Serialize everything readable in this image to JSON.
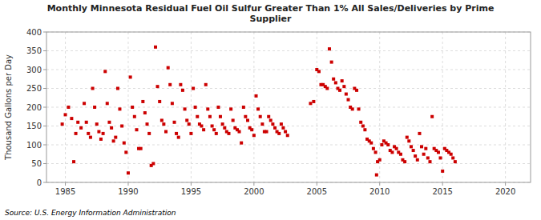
{
  "chart_data": {
    "type": "scatter",
    "title": "Monthly Minnesota Residual Fuel Oil Sulfur Greater Than 1% All Sales/Deliveries by Prime\nSupplier",
    "ylabel": "Thousand Gallons per Day",
    "source": "Source: U.S. Energy Information Administration",
    "color": "#cc0000",
    "marker": "square",
    "grid": true,
    "xlim": [
      1983.5,
      2022
    ],
    "ylim": [
      0,
      400
    ],
    "xticks": [
      1985,
      1990,
      1995,
      2000,
      2005,
      2010,
      2015,
      2020
    ],
    "yticks": [
      0,
      50,
      100,
      150,
      200,
      250,
      300,
      350,
      400
    ],
    "x": [
      1984.75,
      1985.0,
      1985.25,
      1985.5,
      1985.67,
      1985.83,
      1986.0,
      1986.25,
      1986.5,
      1986.67,
      1986.83,
      1987.0,
      1987.17,
      1987.33,
      1987.5,
      1987.67,
      1987.83,
      1988.0,
      1988.17,
      1988.33,
      1988.5,
      1988.67,
      1988.83,
      1989.0,
      1989.17,
      1989.33,
      1989.5,
      1989.67,
      1989.83,
      1990.0,
      1990.17,
      1990.33,
      1990.5,
      1990.67,
      1990.83,
      1991.0,
      1991.17,
      1991.33,
      1991.5,
      1991.67,
      1991.83,
      1992.0,
      1992.17,
      1992.33,
      1992.5,
      1992.67,
      1992.83,
      1993.0,
      1993.17,
      1993.33,
      1993.5,
      1993.67,
      1993.83,
      1994.0,
      1994.17,
      1994.33,
      1994.5,
      1994.67,
      1994.83,
      1995.0,
      1995.17,
      1995.33,
      1995.5,
      1995.67,
      1995.83,
      1996.0,
      1996.17,
      1996.33,
      1996.5,
      1996.67,
      1996.83,
      1997.0,
      1997.17,
      1997.33,
      1997.5,
      1997.67,
      1997.83,
      1998.0,
      1998.17,
      1998.33,
      1998.5,
      1998.67,
      1998.83,
      1999.0,
      1999.17,
      1999.33,
      1999.5,
      1999.67,
      1999.83,
      2000.0,
      2000.17,
      2000.33,
      2000.5,
      2000.67,
      2000.83,
      2001.0,
      2001.17,
      2001.33,
      2001.5,
      2001.67,
      2001.83,
      2002.0,
      2002.17,
      2002.33,
      2002.5,
      2002.67,
      2004.5,
      2004.75,
      2005.0,
      2005.17,
      2005.33,
      2005.5,
      2005.67,
      2005.83,
      2006.0,
      2006.17,
      2006.33,
      2006.5,
      2006.67,
      2006.83,
      2007.0,
      2007.17,
      2007.33,
      2007.5,
      2007.67,
      2007.83,
      2008.0,
      2008.17,
      2008.33,
      2008.5,
      2008.67,
      2008.83,
      2009.0,
      2009.17,
      2009.33,
      2009.5,
      2009.67,
      2009.75,
      2009.83,
      2010.0,
      2010.17,
      2010.33,
      2010.5,
      2010.67,
      2010.83,
      2011.0,
      2011.17,
      2011.33,
      2011.5,
      2011.67,
      2011.83,
      2012.0,
      2012.17,
      2012.33,
      2012.5,
      2012.67,
      2012.83,
      2013.0,
      2013.17,
      2013.33,
      2013.5,
      2013.67,
      2013.83,
      2014.0,
      2014.17,
      2014.33,
      2014.5,
      2014.67,
      2014.83,
      2015.0,
      2015.17,
      2015.33,
      2015.5,
      2015.67,
      2015.83,
      2016.0
    ],
    "values": [
      155,
      180,
      200,
      170,
      55,
      130,
      160,
      145,
      210,
      160,
      130,
      120,
      250,
      200,
      155,
      135,
      115,
      130,
      295,
      210,
      160,
      145,
      110,
      120,
      250,
      195,
      150,
      105,
      80,
      25,
      280,
      200,
      175,
      140,
      90,
      90,
      215,
      185,
      155,
      130,
      45,
      50,
      360,
      255,
      215,
      165,
      155,
      135,
      305,
      260,
      210,
      160,
      130,
      120,
      260,
      245,
      195,
      165,
      155,
      130,
      250,
      200,
      175,
      155,
      150,
      140,
      260,
      195,
      175,
      150,
      140,
      130,
      200,
      175,
      155,
      145,
      135,
      130,
      195,
      165,
      145,
      140,
      135,
      105,
      200,
      175,
      165,
      145,
      140,
      125,
      230,
      195,
      175,
      155,
      135,
      135,
      175,
      165,
      155,
      145,
      135,
      130,
      155,
      145,
      135,
      125,
      210,
      215,
      300,
      295,
      260,
      260,
      255,
      250,
      355,
      320,
      275,
      265,
      250,
      245,
      270,
      255,
      235,
      220,
      200,
      195,
      250,
      245,
      195,
      160,
      150,
      140,
      115,
      110,
      105,
      90,
      80,
      20,
      55,
      60,
      100,
      110,
      105,
      100,
      85,
      80,
      95,
      90,
      80,
      75,
      60,
      55,
      120,
      110,
      95,
      85,
      70,
      60,
      130,
      95,
      75,
      90,
      65,
      55,
      175,
      90,
      85,
      80,
      65,
      30,
      90,
      85,
      80,
      75,
      65,
      55
    ]
  }
}
